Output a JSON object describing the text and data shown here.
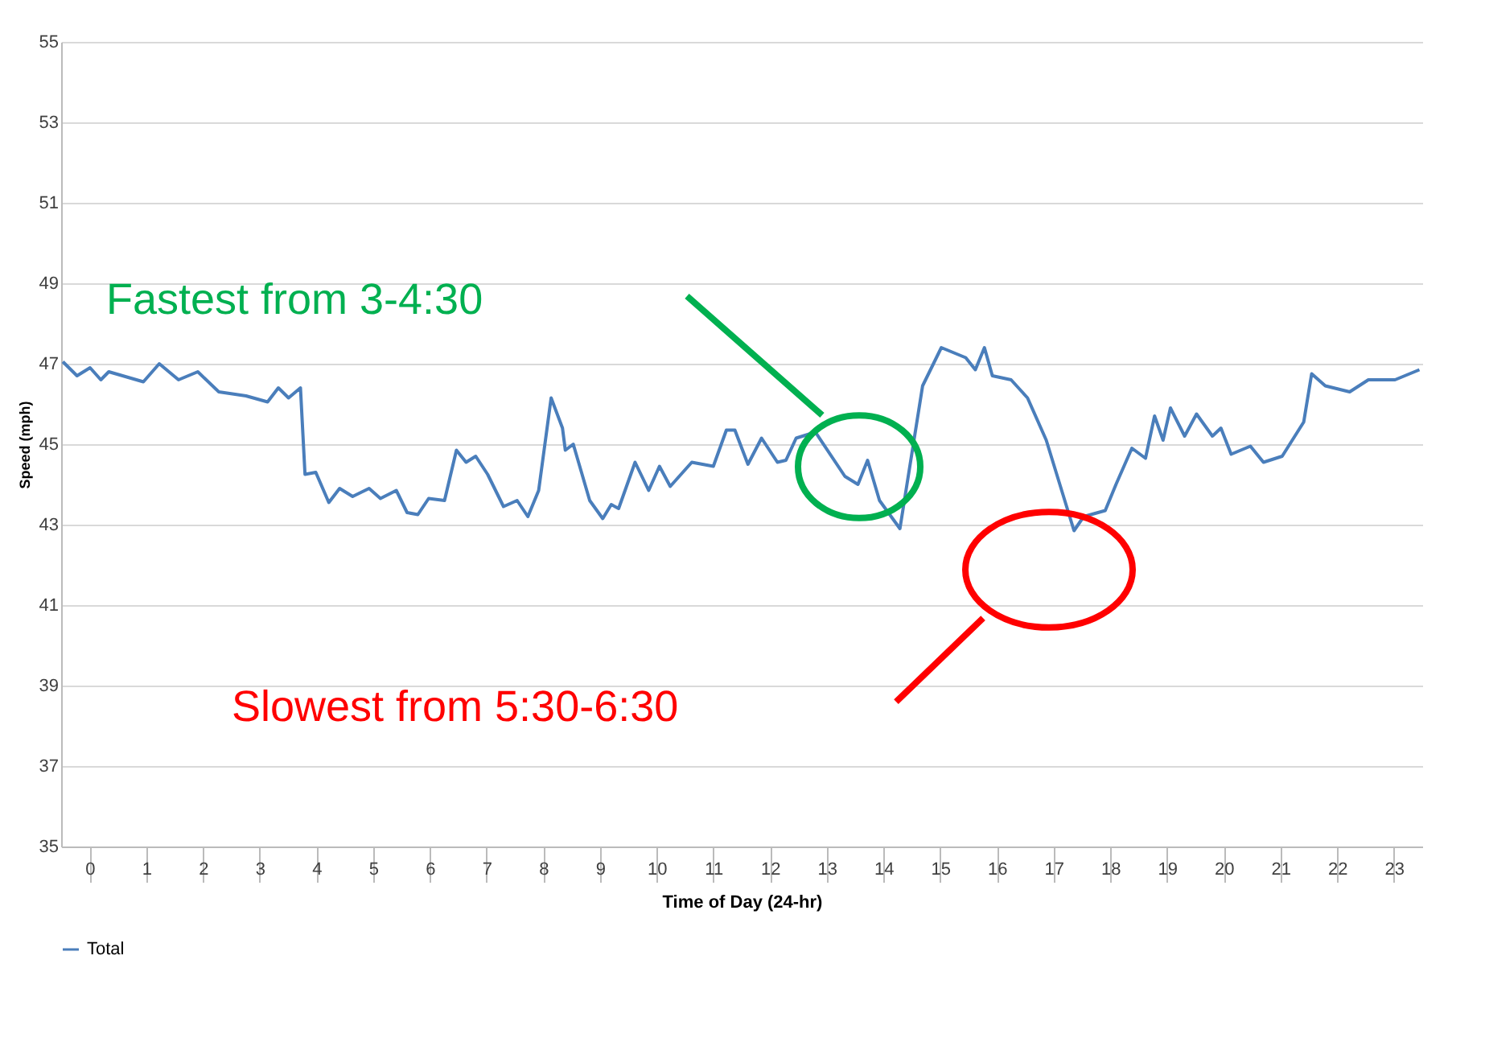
{
  "chart_data": {
    "type": "line",
    "xlabel": "Time of Day (24-hr)",
    "ylabel": "Speed (mph)",
    "xlim": [
      0,
      24
    ],
    "ylim": [
      35,
      55
    ],
    "yticks": [
      35,
      37,
      39,
      41,
      43,
      45,
      47,
      49,
      51,
      53,
      55
    ],
    "xticks": [
      {
        "value": 0.5,
        "label": "0"
      },
      {
        "value": 1.5,
        "label": "1"
      },
      {
        "value": 2.5,
        "label": "2"
      },
      {
        "value": 3.5,
        "label": "3"
      },
      {
        "value": 4.5,
        "label": "4"
      },
      {
        "value": 5.5,
        "label": "5"
      },
      {
        "value": 6.5,
        "label": "6"
      },
      {
        "value": 7.5,
        "label": "7"
      },
      {
        "value": 8.5,
        "label": "8"
      },
      {
        "value": 9.5,
        "label": "9"
      },
      {
        "value": 10.5,
        "label": "10"
      },
      {
        "value": 11.5,
        "label": "11"
      },
      {
        "value": 12.5,
        "label": "12"
      },
      {
        "value": 13.5,
        "label": "13"
      },
      {
        "value": 14.5,
        "label": "14"
      },
      {
        "value": 15.5,
        "label": "15"
      },
      {
        "value": 16.5,
        "label": "16"
      },
      {
        "value": 17.5,
        "label": "17"
      },
      {
        "value": 18.5,
        "label": "18"
      },
      {
        "value": 19.5,
        "label": "19"
      },
      {
        "value": 20.5,
        "label": "20"
      },
      {
        "value": 21.5,
        "label": "21"
      },
      {
        "value": 22.5,
        "label": "22"
      },
      {
        "value": 23.5,
        "label": "23"
      }
    ],
    "grid": "y",
    "legend": "bottom",
    "marker": "none",
    "line_style": "solid",
    "annotations": [
      "Fastest   from  3-4:30",
      "Slowest  from  5:30-6:30"
    ],
    "series": [
      {
        "name": "Total",
        "color": "#4a7ebb",
        "x": [
          0.03,
          0.28,
          0.51,
          0.7,
          0.84,
          1.45,
          1.73,
          2.07,
          2.41,
          2.78,
          3.26,
          3.64,
          3.83,
          4.01,
          4.22,
          4.3,
          4.49,
          4.72,
          4.91,
          5.14,
          5.43,
          5.63,
          5.91,
          6.1,
          6.29,
          6.48,
          6.76,
          6.97,
          7.14,
          7.31,
          7.52,
          7.8,
          8.04,
          8.23,
          8.42,
          8.64,
          8.84,
          8.89,
          9.03,
          9.32,
          9.55,
          9.7,
          9.83,
          10.12,
          10.36,
          10.55,
          10.74,
          11.12,
          11.5,
          11.73,
          11.88,
          12.11,
          12.35,
          12.63,
          12.78,
          12.96,
          13.3,
          13.82,
          14.05,
          14.22,
          14.43,
          14.79,
          15.19,
          15.52,
          15.95,
          16.12,
          16.28,
          16.42,
          16.75,
          17.04,
          17.37,
          17.86,
          18.03,
          18.41,
          18.6,
          18.88,
          19.12,
          19.28,
          19.43,
          19.56,
          19.81,
          20.02,
          20.3,
          20.45,
          20.63,
          20.97,
          21.2,
          21.53,
          21.91,
          22.05,
          22.29,
          22.72,
          23.05,
          23.52,
          23.95
        ],
        "values": [
          47.05,
          46.7,
          46.9,
          46.6,
          46.8,
          46.55,
          47.0,
          46.6,
          46.8,
          46.3,
          46.2,
          46.05,
          46.4,
          46.15,
          46.4,
          44.25,
          44.3,
          43.55,
          43.9,
          43.7,
          43.9,
          43.65,
          43.85,
          43.3,
          43.25,
          43.65,
          43.6,
          44.85,
          44.55,
          44.7,
          44.25,
          43.45,
          43.6,
          43.2,
          43.85,
          46.15,
          45.4,
          44.85,
          45.0,
          43.6,
          43.15,
          43.5,
          43.4,
          44.55,
          43.85,
          44.45,
          43.95,
          44.55,
          44.45,
          45.35,
          45.35,
          44.5,
          45.15,
          44.55,
          44.6,
          45.15,
          45.3,
          44.2,
          44.0,
          44.6,
          43.6,
          42.9,
          46.45,
          47.4,
          47.15,
          46.85,
          47.4,
          46.7,
          46.6,
          46.15,
          45.1,
          42.85,
          43.2,
          43.35,
          44.0,
          44.9,
          44.65,
          45.7,
          45.1,
          45.9,
          45.2,
          45.75,
          45.2,
          45.4,
          44.75,
          44.95,
          44.55,
          44.7,
          45.55,
          46.75,
          46.45,
          46.3,
          46.6,
          46.6,
          46.85
        ]
      }
    ]
  }
}
